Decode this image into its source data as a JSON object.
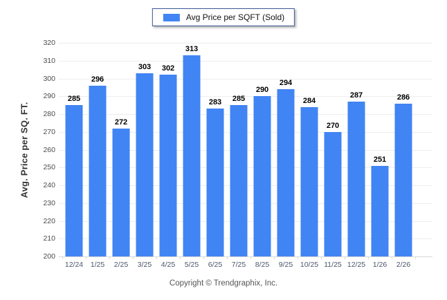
{
  "legend": {
    "label": "Avg Price per SQFT (Sold)",
    "swatch_color": "#4184f3"
  },
  "y_axis": {
    "label": "Avg. Price per SQ. FT."
  },
  "footer": {
    "copyright": "Copyright © Trendgraphix, Inc."
  },
  "chart_data": {
    "type": "bar",
    "title": "Avg Price per SQFT (Sold)",
    "categories": [
      "12/24",
      "1/25",
      "2/25",
      "3/25",
      "4/25",
      "5/25",
      "6/25",
      "7/25",
      "8/25",
      "9/25",
      "10/25",
      "11/25",
      "12/25",
      "1/26",
      "2/26"
    ],
    "values": [
      285,
      296,
      272,
      303,
      302,
      313,
      283,
      285,
      290,
      294,
      284,
      270,
      287,
      251,
      286
    ],
    "xlabel": "",
    "ylabel": "Avg. Price per SQ. FT.",
    "ylim": [
      200,
      320
    ],
    "ytick_step": 10,
    "bar_color": "#4184f3",
    "grid": true,
    "legend_position": "top-center",
    "value_labels": true
  }
}
